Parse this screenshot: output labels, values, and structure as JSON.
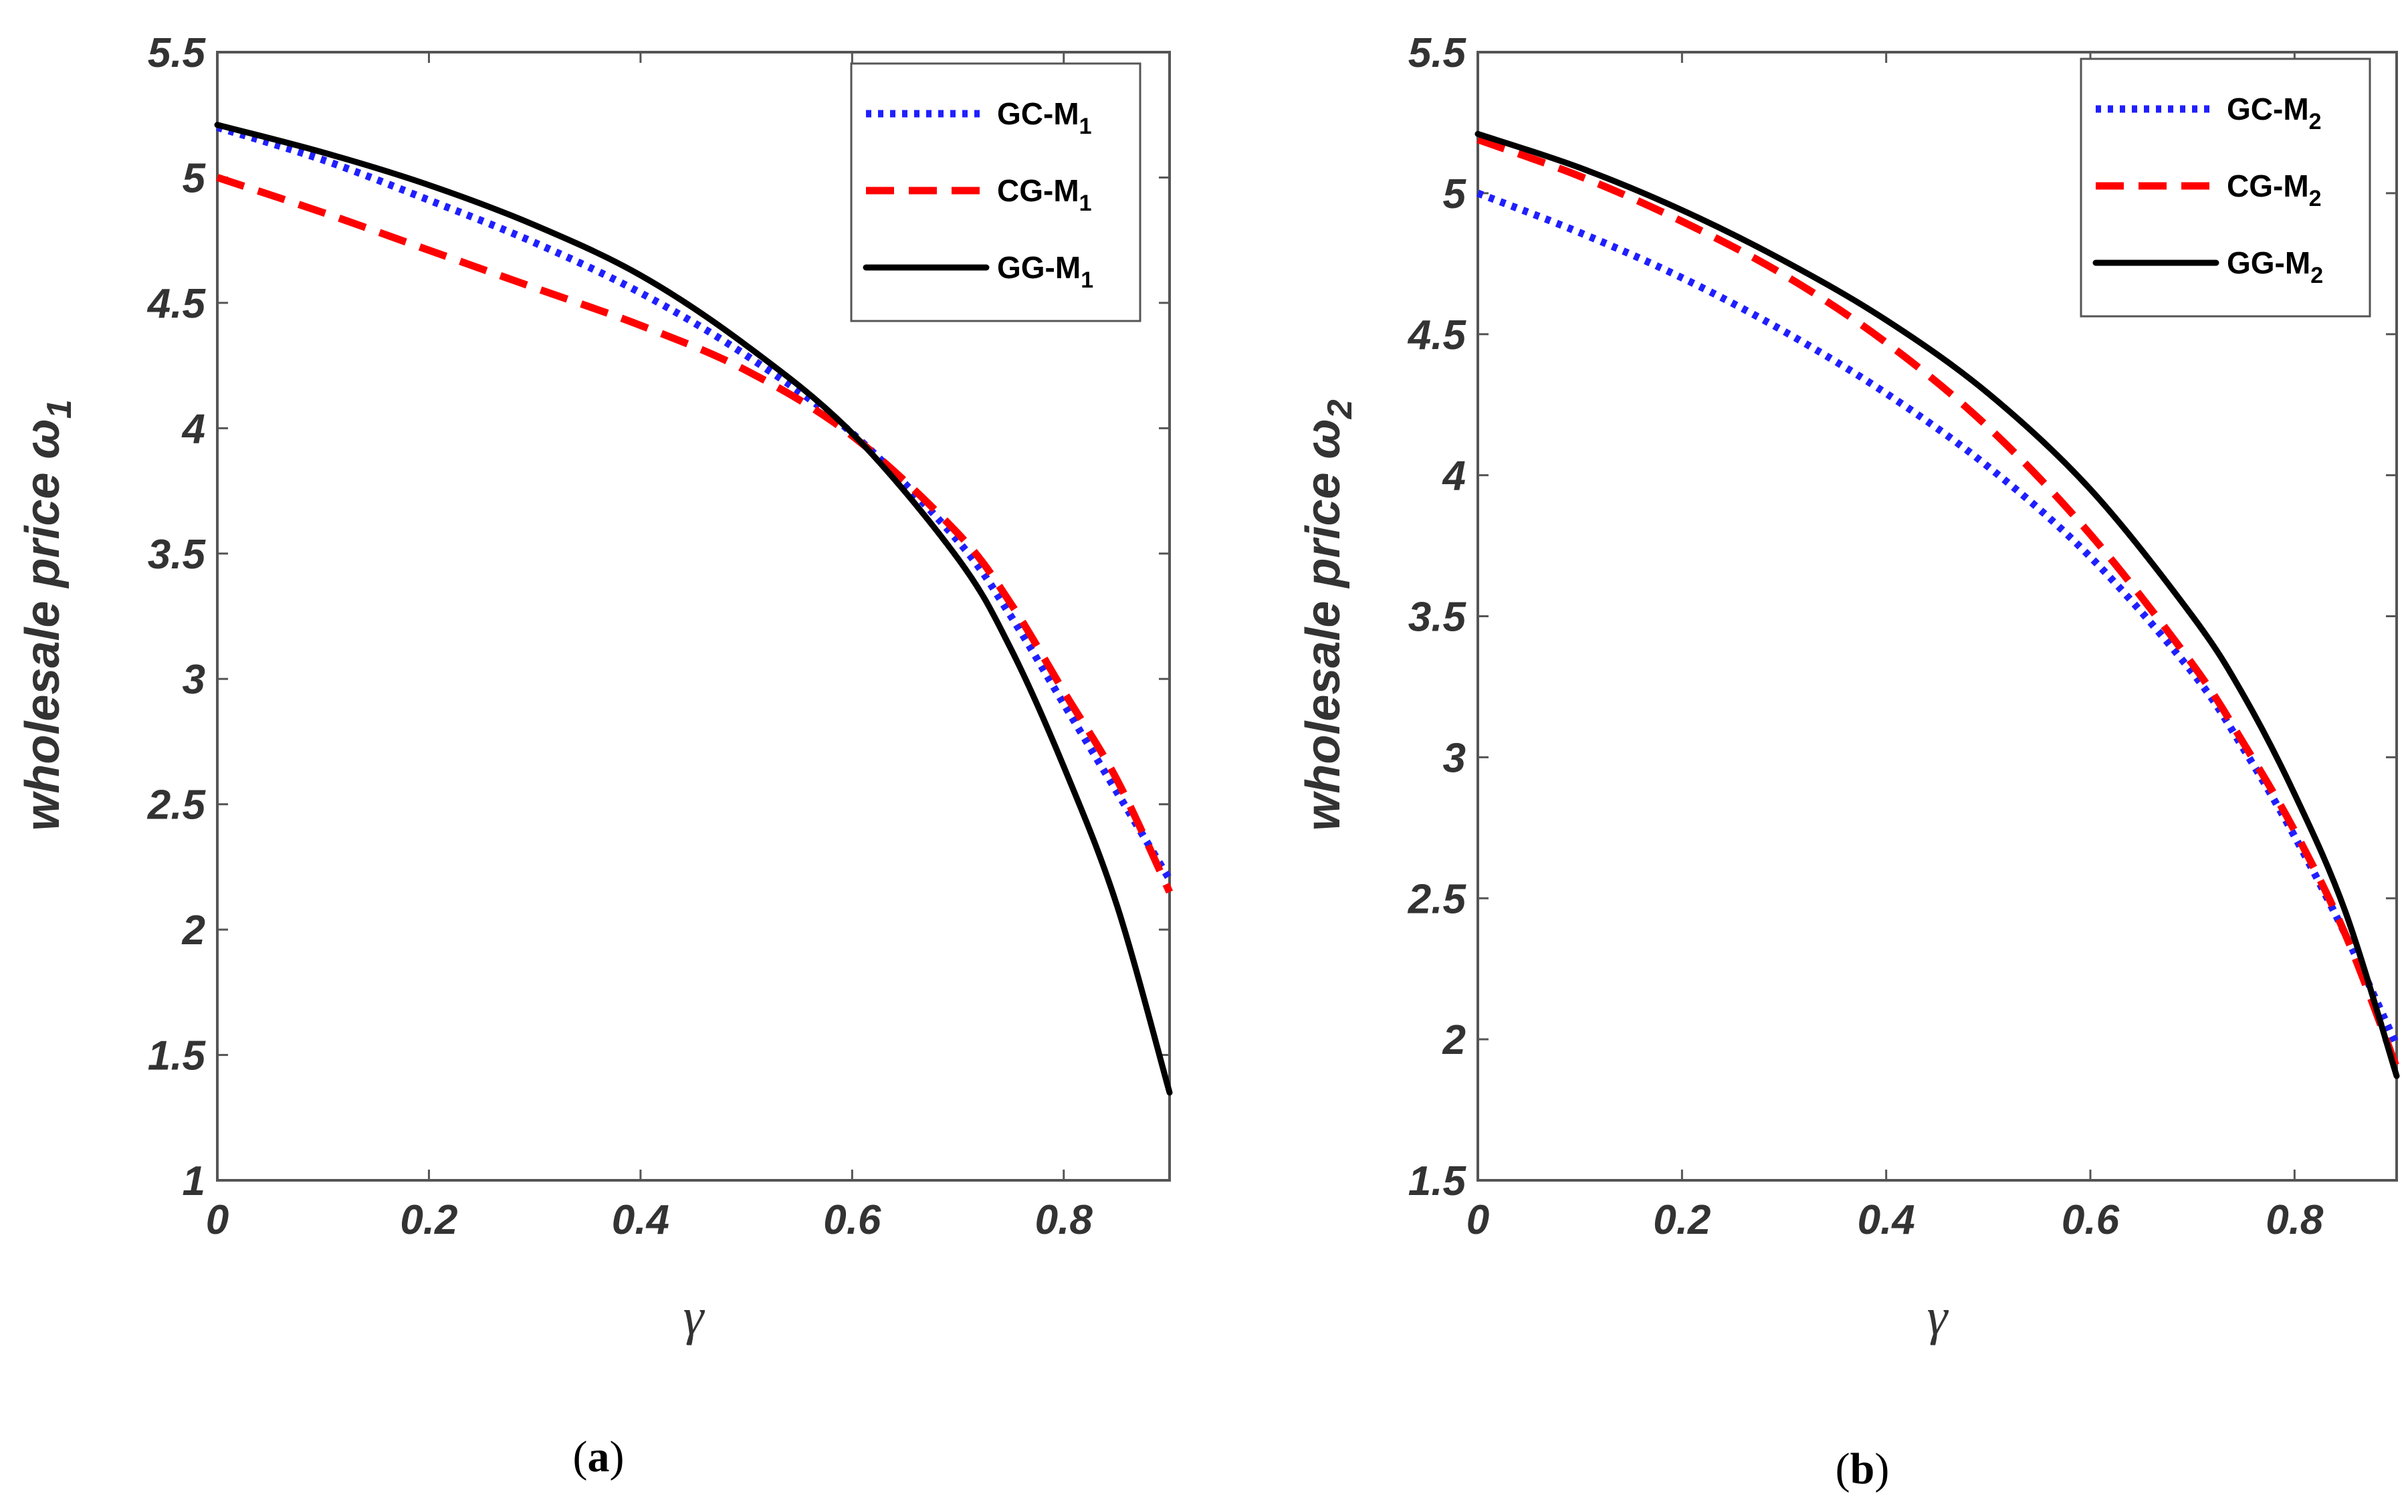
{
  "figure": {
    "colors": {
      "axis": "#555555",
      "text": "#333333",
      "gc": "#1f1fff",
      "cg": "#ff0000",
      "gg": "#000000"
    }
  },
  "chart_data": [
    {
      "id": "a",
      "type": "line",
      "caption_letter": "a",
      "xlabel": "γ",
      "ylabel_text": "wholesale price ω",
      "ylabel_sub": "1",
      "xlim": [
        0,
        0.9
      ],
      "ylim": [
        1,
        5.5
      ],
      "xticks": [
        0,
        0.2,
        0.4,
        0.6,
        0.8
      ],
      "xtick_labels": [
        "0",
        "0.2",
        "0.4",
        "0.6",
        "0.8"
      ],
      "yticks": [
        1,
        1.5,
        2,
        2.5,
        3,
        3.5,
        4,
        4.5,
        5,
        5.5
      ],
      "ytick_labels": [
        "1",
        "1.5",
        "2",
        "2.5",
        "3",
        "3.5",
        "4",
        "4.5",
        "5",
        "5.5"
      ],
      "legend_position": "top-right",
      "x": [
        0,
        0.1,
        0.2,
        0.3,
        0.4,
        0.5,
        0.6,
        0.7,
        0.75,
        0.8,
        0.85,
        0.9
      ],
      "series": [
        {
          "name": "GC-M",
          "sub": "1",
          "style": "dotted",
          "color_key": "gc",
          "values": [
            5.2,
            5.07,
            4.91,
            4.74,
            4.54,
            4.29,
            3.98,
            3.55,
            3.25,
            2.9,
            2.55,
            2.2
          ]
        },
        {
          "name": "CG-M",
          "sub": "1",
          "style": "dashed",
          "color_key": "cg",
          "values": [
            5.0,
            4.86,
            4.71,
            4.56,
            4.41,
            4.23,
            3.97,
            3.58,
            3.3,
            2.95,
            2.6,
            2.15
          ]
        },
        {
          "name": "GG-M",
          "sub": "1",
          "style": "solid",
          "color_key": "gg",
          "values": [
            5.21,
            5.1,
            4.97,
            4.81,
            4.61,
            4.33,
            3.98,
            3.48,
            3.12,
            2.65,
            2.1,
            1.35
          ]
        }
      ]
    },
    {
      "id": "b",
      "type": "line",
      "caption_letter": "b",
      "xlabel": "γ",
      "ylabel_text": "wholesale price ω",
      "ylabel_sub": "2",
      "xlim": [
        0,
        0.9
      ],
      "ylim": [
        1.5,
        5.5
      ],
      "xticks": [
        0,
        0.2,
        0.4,
        0.6,
        0.8
      ],
      "xtick_labels": [
        "0",
        "0.2",
        "0.4",
        "0.6",
        "0.8"
      ],
      "yticks": [
        1.5,
        2,
        2.5,
        3,
        3.5,
        4,
        4.5,
        5,
        5.5
      ],
      "ytick_labels": [
        "1.5",
        "2",
        "2.5",
        "3",
        "3.5",
        "4",
        "4.5",
        "5",
        "5.5"
      ],
      "legend_position": "top-right",
      "x": [
        0,
        0.1,
        0.2,
        0.3,
        0.4,
        0.5,
        0.6,
        0.7,
        0.75,
        0.8,
        0.85,
        0.9
      ],
      "series": [
        {
          "name": "GC-M",
          "sub": "2",
          "style": "dotted",
          "color_key": "gc",
          "values": [
            5.0,
            4.86,
            4.7,
            4.51,
            4.29,
            4.03,
            3.71,
            3.3,
            3.03,
            2.72,
            2.37,
            1.98
          ]
        },
        {
          "name": "CG-M",
          "sub": "2",
          "style": "dashed",
          "color_key": "cg",
          "values": [
            5.19,
            5.06,
            4.9,
            4.71,
            4.47,
            4.17,
            3.79,
            3.33,
            3.05,
            2.74,
            2.37,
            1.9
          ]
        },
        {
          "name": "GG-M",
          "sub": "2",
          "style": "solid",
          "color_key": "gg",
          "values": [
            5.21,
            5.09,
            4.94,
            4.76,
            4.55,
            4.29,
            3.95,
            3.5,
            3.22,
            2.87,
            2.45,
            1.87
          ]
        }
      ]
    }
  ]
}
